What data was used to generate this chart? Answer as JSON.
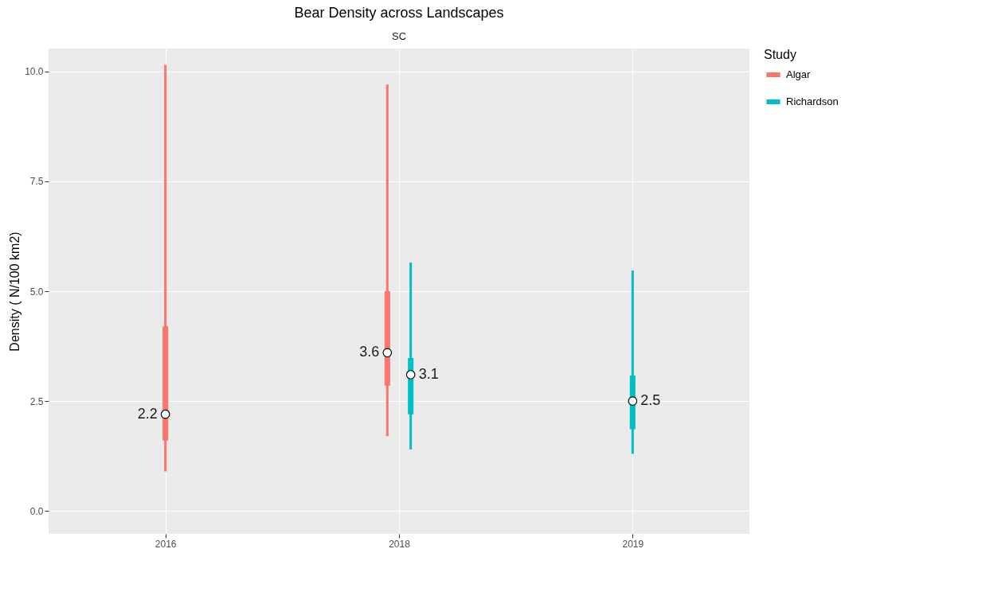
{
  "chart_data": {
    "type": "box",
    "title": "Bear Density across Landscapes",
    "subtitle": "SC",
    "ylabel": "Density ( N/100 km2)",
    "legend_title": "Study",
    "categories": [
      "2016",
      "2018",
      "2019"
    ],
    "series": [
      {
        "name": "Algar",
        "color": "#f8766d",
        "value_labels": [
          "2.2",
          "3.6",
          null
        ],
        "boxes": [
          {
            "low": 0.9,
            "q1": 1.6,
            "median": 2.2,
            "q3": 4.2,
            "high": 10.15
          },
          {
            "low": 1.7,
            "q1": 2.85,
            "median": 3.6,
            "q3": 5.0,
            "high": 9.7
          },
          null
        ]
      },
      {
        "name": "Richardson",
        "color": "#00bfc4",
        "value_labels": [
          null,
          "3.1",
          "2.5"
        ],
        "boxes": [
          null,
          {
            "low": 1.4,
            "q1": 2.2,
            "median": 3.1,
            "q3": 3.48,
            "high": 5.65
          },
          {
            "low": 1.3,
            "q1": 1.86,
            "median": 2.5,
            "q3": 3.08,
            "high": 5.47
          }
        ]
      }
    ],
    "ylim": [
      -0.52,
      10.52
    ],
    "yticks": [
      {
        "value": 0,
        "label": "0.0"
      },
      {
        "value": 2.5,
        "label": "2.5"
      },
      {
        "value": 5,
        "label": "5.0"
      },
      {
        "value": 7.5,
        "label": "7.5"
      },
      {
        "value": 10,
        "label": "10.0"
      }
    ],
    "grid": true,
    "legend": "right"
  }
}
